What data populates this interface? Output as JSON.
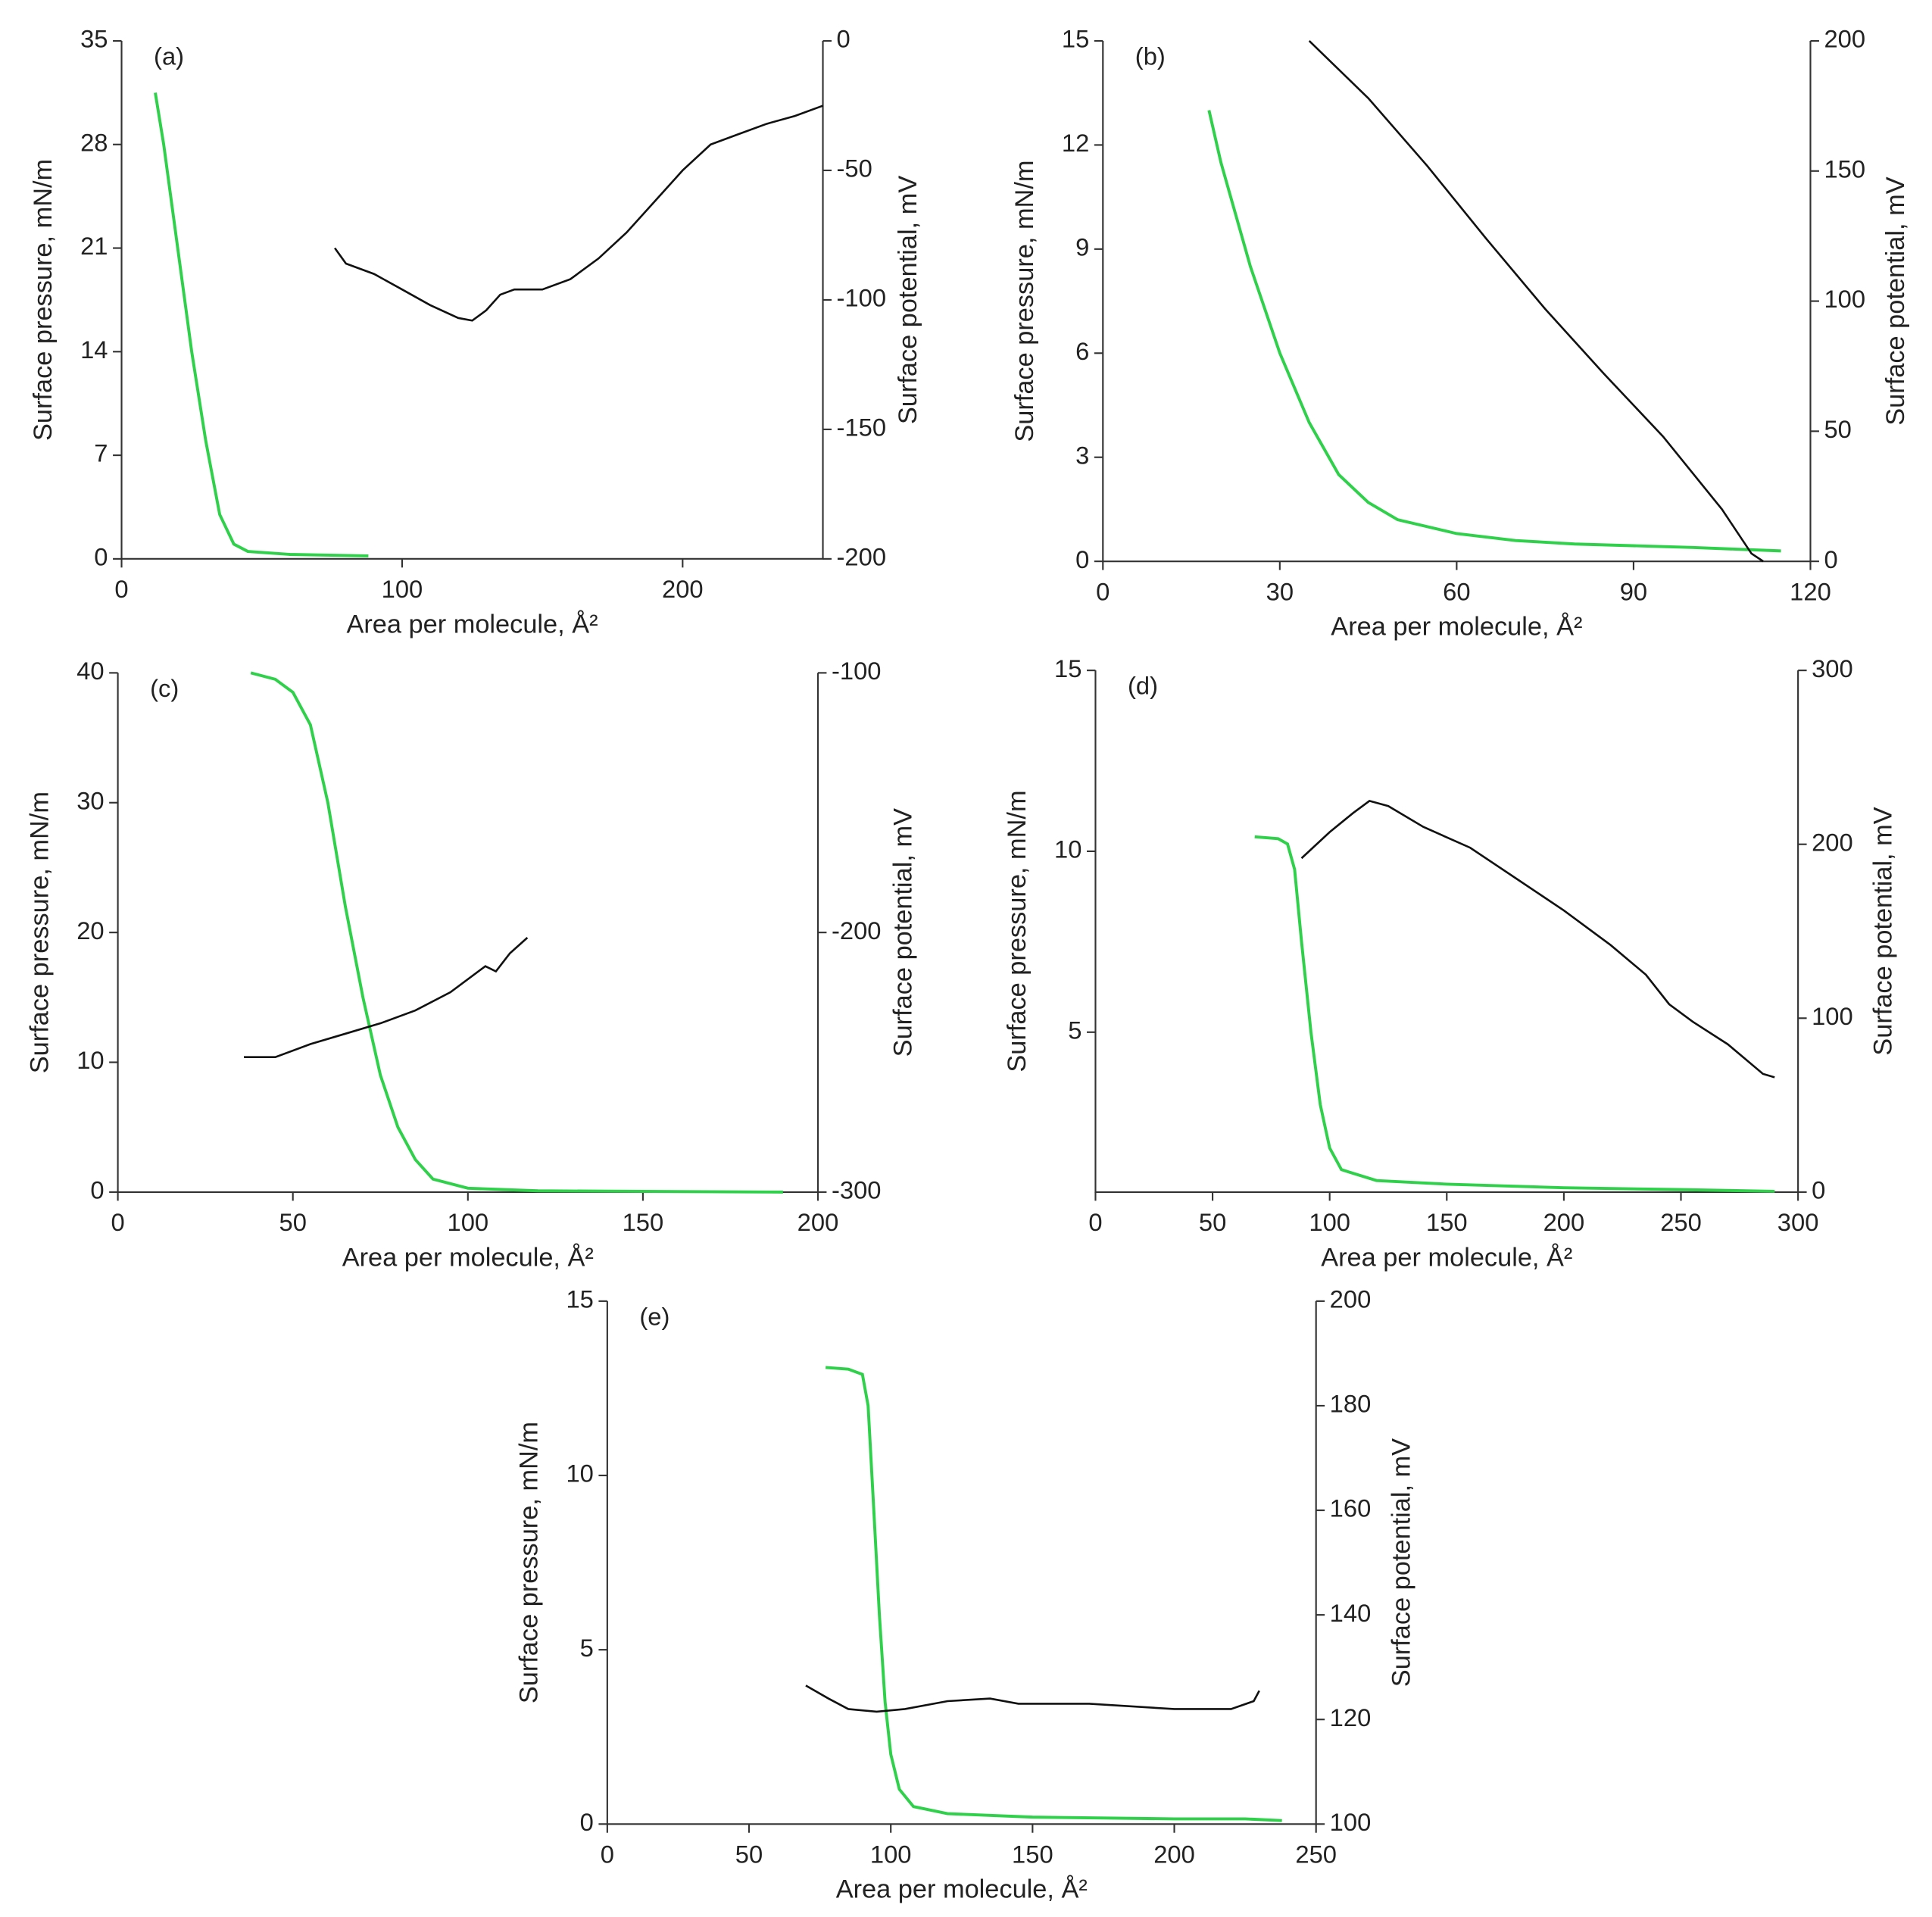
{
  "chart_data": [
    {
      "type": "line",
      "title": "(a)",
      "x_label": "Area per molecule, Å²",
      "y_label": "Surface pressure, mN/m",
      "y2_label": "Surface potential, mV",
      "xlim": [
        0,
        250
      ],
      "xticks": [
        0,
        100,
        200
      ],
      "ylim": [
        0,
        35
      ],
      "yticks": [
        0,
        7,
        14,
        21,
        28,
        35
      ],
      "y2lim": [
        -200,
        0
      ],
      "y2ticks": [
        -200,
        -150,
        -100,
        -50,
        0
      ],
      "series": [
        {
          "color": "#2fd04a",
          "x": [
            12,
            15,
            20,
            25,
            30,
            35,
            40,
            45,
            60,
            88
          ],
          "values": [
            31.5,
            28,
            21,
            14,
            8,
            3,
            1,
            0.5,
            0.3,
            0.2
          ]
        },
        {
          "color": "#111111",
          "axis": "y2",
          "x": [
            76,
            80,
            90,
            100,
            110,
            120,
            125,
            130,
            135,
            140,
            150,
            160,
            170,
            180,
            190,
            200,
            210,
            220,
            230,
            240,
            250
          ],
          "values": [
            -80,
            -86,
            -90,
            -96,
            -102,
            -107,
            -108,
            -104,
            -98,
            -96,
            -96,
            -92,
            -84,
            -74,
            -62,
            -50,
            -40,
            -36,
            -32,
            -29,
            -25
          ]
        }
      ]
    },
    {
      "type": "line",
      "title": "(b)",
      "x_label": "Area per molecule, Å²",
      "y_label": "Surface pressure, mN/m",
      "y2_label": "Surface potential, mV",
      "xlim": [
        0,
        120
      ],
      "xticks": [
        0,
        30,
        60,
        90,
        120
      ],
      "ylim": [
        0,
        15
      ],
      "yticks": [
        0,
        3,
        6,
        9,
        12,
        15
      ],
      "y2lim": [
        0,
        200
      ],
      "y2ticks": [
        0,
        50,
        100,
        150,
        200
      ],
      "series": [
        {
          "color": "#2fd04a",
          "x": [
            18,
            20,
            25,
            30,
            35,
            40,
            45,
            50,
            60,
            70,
            80,
            100,
            115
          ],
          "values": [
            13,
            11.5,
            8.5,
            6,
            4,
            2.5,
            1.7,
            1.2,
            0.8,
            0.6,
            0.5,
            0.4,
            0.3
          ]
        },
        {
          "color": "#111111",
          "axis": "y2",
          "x": [
            35,
            45,
            55,
            65,
            75,
            85,
            95,
            105,
            110,
            112
          ],
          "values": [
            200,
            178,
            152,
            124,
            97,
            72,
            48,
            20,
            3,
            0
          ]
        }
      ]
    },
    {
      "type": "line",
      "title": "(c)",
      "x_label": "Area per molecule, Å²",
      "y_label": "Surface pressure, mN/m",
      "y2_label": "Surface potential, mV",
      "xlim": [
        0,
        200
      ],
      "xticks": [
        0,
        50,
        100,
        150,
        200
      ],
      "ylim": [
        0,
        40
      ],
      "yticks": [
        0,
        10,
        20,
        30,
        40
      ],
      "y2lim": [
        -300,
        -100
      ],
      "y2ticks": [
        -300,
        -200,
        -100
      ],
      "series": [
        {
          "color": "#2fd04a",
          "x": [
            38,
            45,
            50,
            55,
            60,
            65,
            70,
            75,
            80,
            85,
            90,
            100,
            120,
            190
          ],
          "values": [
            40,
            39.5,
            38.5,
            36,
            30,
            22,
            15,
            9,
            5,
            2.5,
            1,
            0.3,
            0.1,
            0
          ]
        },
        {
          "color": "#111111",
          "axis": "y2",
          "x": [
            36,
            45,
            55,
            65,
            75,
            85,
            95,
            105,
            108,
            112,
            117
          ],
          "values": [
            -248,
            -248,
            -243,
            -239,
            -235,
            -230,
            -223,
            -213,
            -215,
            -208,
            -202
          ]
        }
      ]
    },
    {
      "type": "line",
      "title": "(d)",
      "x_label": "Area per molecule, Å²",
      "y_label": "Surface pressure, mN/m",
      "y2_label": "Surface potential, mV",
      "xlim": [
        0,
        300
      ],
      "xticks": [
        0,
        50,
        100,
        150,
        200,
        250,
        300
      ],
      "ylim": [
        0.58,
        15
      ],
      "yticks": [
        5,
        10,
        15
      ],
      "y2lim": [
        0,
        300
      ],
      "y2ticks": [
        0,
        100,
        200,
        300
      ],
      "series": [
        {
          "color": "#2fd04a",
          "x": [
            68,
            78,
            82,
            85,
            88,
            92,
            96,
            100,
            105,
            120,
            150,
            200,
            250,
            290
          ],
          "values": [
            10.4,
            10.35,
            10.2,
            9.5,
            7.5,
            5,
            3,
            1.8,
            1.2,
            0.9,
            0.8,
            0.7,
            0.65,
            0.6
          ]
        },
        {
          "color": "#111111",
          "axis": "y2",
          "x": [
            88,
            100,
            110,
            117,
            125,
            140,
            160,
            180,
            200,
            220,
            235,
            245,
            255,
            270,
            285,
            290
          ],
          "values": [
            192,
            207,
            218,
            225,
            222,
            210,
            198,
            180,
            162,
            142,
            125,
            108,
            98,
            85,
            68,
            66
          ]
        }
      ]
    },
    {
      "type": "line",
      "title": "(e)",
      "x_label": "Area per molecule, Å²",
      "y_label": "Surface pressure, mN/m",
      "y2_label": "Surface potential, mV",
      "xlim": [
        0,
        250
      ],
      "xticks": [
        0,
        50,
        100,
        150,
        200,
        250
      ],
      "ylim": [
        0,
        15
      ],
      "yticks": [
        0,
        5,
        10,
        15
      ],
      "y2lim": [
        100,
        200
      ],
      "y2ticks": [
        100,
        120,
        140,
        160,
        180,
        200
      ],
      "series": [
        {
          "color": "#2fd04a",
          "x": [
            77,
            85,
            90,
            92,
            94,
            96,
            98,
            100,
            103,
            108,
            120,
            150,
            200,
            225,
            238
          ],
          "values": [
            13.1,
            13.05,
            12.9,
            12,
            9,
            6,
            3.5,
            2,
            1,
            0.5,
            0.3,
            0.2,
            0.15,
            0.15,
            0.1
          ]
        },
        {
          "color": "#111111",
          "axis": "y2",
          "x": [
            70,
            78,
            85,
            95,
            105,
            120,
            135,
            145,
            170,
            200,
            220,
            228,
            230
          ],
          "values": [
            126.5,
            124,
            122,
            121.5,
            122,
            123.5,
            124,
            123,
            123,
            122,
            122,
            123.5,
            125.5
          ]
        }
      ]
    }
  ]
}
